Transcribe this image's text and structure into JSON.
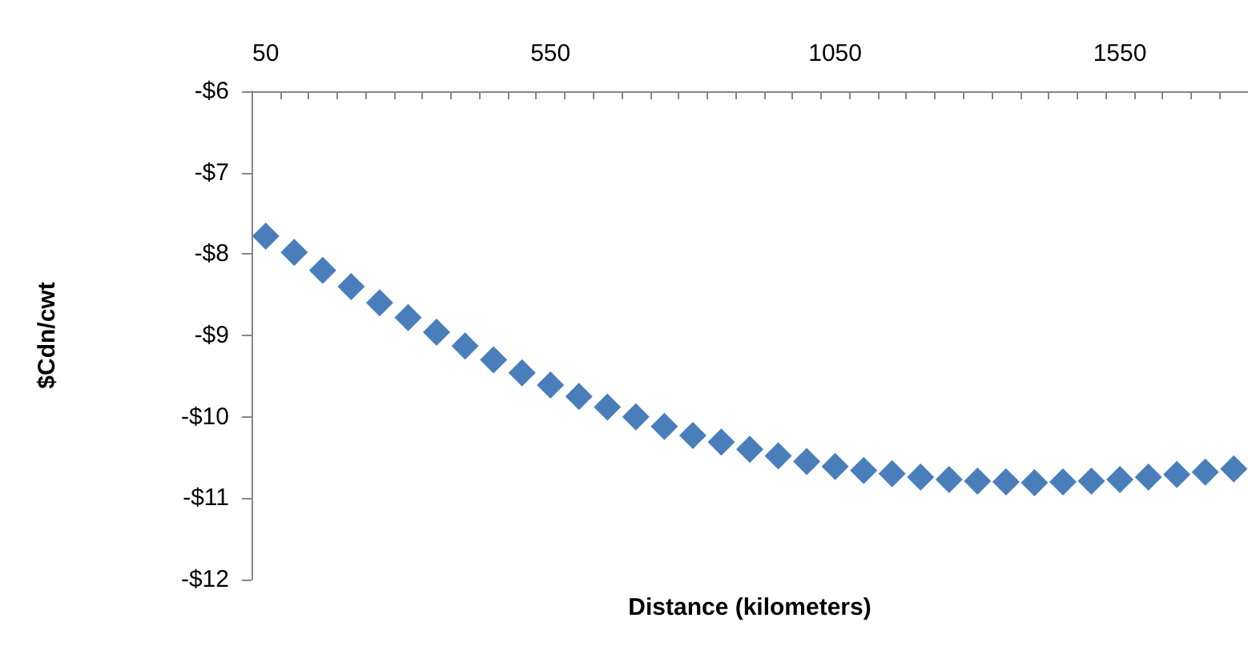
{
  "chart_data": {
    "type": "scatter",
    "xlabel": "Distance (kilometers)",
    "ylabel": "$Cdn/cwt",
    "categories": [
      "50",
      null,
      null,
      null,
      null,
      null,
      null,
      null,
      null,
      null,
      "550",
      null,
      null,
      null,
      null,
      null,
      null,
      null,
      null,
      null,
      "1050",
      null,
      null,
      null,
      null,
      null,
      null,
      null,
      null,
      null,
      "1550",
      null,
      null,
      null,
      null
    ],
    "series": [
      {
        "color": "#4a7ebb",
        "values": [
          -7.78,
          -7.98,
          -8.2,
          -8.4,
          -8.6,
          -8.78,
          -8.96,
          -9.13,
          -9.3,
          -9.46,
          -9.61,
          -9.75,
          -9.88,
          -10.0,
          -10.12,
          -10.23,
          -10.31,
          -10.4,
          -10.48,
          -10.55,
          -10.61,
          -10.66,
          -10.7,
          -10.74,
          -10.77,
          -10.79,
          -10.8,
          -10.81,
          -10.8,
          -10.79,
          -10.77,
          -10.74,
          -10.71,
          -10.68,
          -10.64
        ]
      }
    ],
    "ylim": [
      -12,
      -6
    ],
    "yticks": [
      {
        "value": -12,
        "label": "-$12"
      },
      {
        "value": -11,
        "label": "-$11"
      },
      {
        "value": -10,
        "label": "-$10"
      },
      {
        "value": -9,
        "label": "-$9"
      },
      {
        "value": -8,
        "label": "-$8"
      },
      {
        "value": -7,
        "label": "-$7"
      },
      {
        "value": -6,
        "label": "-$6"
      }
    ],
    "marker": "diamond",
    "grid": false
  }
}
